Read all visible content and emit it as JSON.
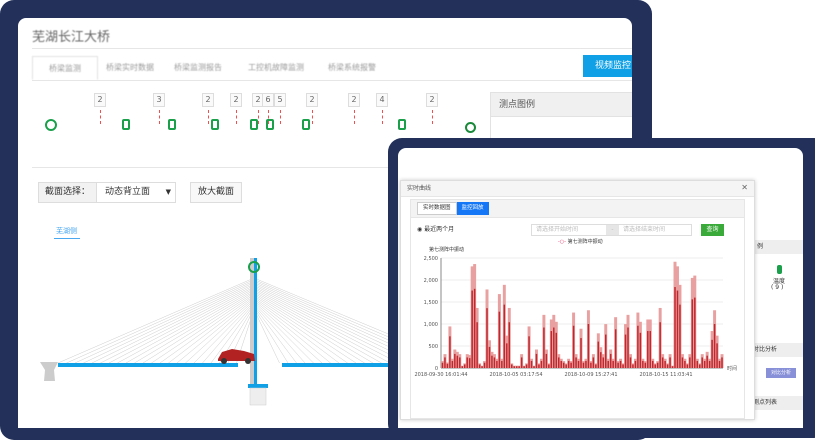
{
  "back_window": {
    "title": "芜湖长江大桥",
    "tabs": [
      "桥梁监测",
      "桥梁实时数据",
      "桥梁监测报告",
      "工控机故障监测",
      "桥梁系统报警"
    ],
    "video_button": "视频监控",
    "sensor_counts": [
      "2",
      "3",
      "2",
      "2",
      "2",
      "6",
      "5",
      "2",
      "2",
      "4",
      "2"
    ],
    "legend_title": "测点图例",
    "section_label": "截面选择：",
    "section_value": "动态背立面",
    "zoom_button": "放大截面",
    "direction_label": "芜湖侧"
  },
  "front_window": {
    "modal_title": "实时曲线",
    "tabs": [
      "实时数据图",
      "监控回放"
    ],
    "radio_label": "最近两个月",
    "start_placeholder": "请选择开始时间",
    "end_placeholder": "请选择结束时间",
    "separator": "-",
    "query_button": "查询",
    "side_legend": "温度",
    "side_count": "( 9 )",
    "compare_title": "对比分析",
    "compare_button": "对比分析",
    "list_title": "测点列表",
    "side_header": "例"
  },
  "colors": {
    "frame": "#22305a",
    "accent": "#0fa0e6",
    "sensor": "#1aa04a",
    "series": "#c0282d",
    "query": "#3aaa3a"
  },
  "chart_data": {
    "type": "bar",
    "legend": "第七测阵中振动",
    "ylabel": "第七测阵中振动",
    "xlabel": "时间",
    "ylim": [
      0,
      2500
    ],
    "yticks": [
      "0",
      "500",
      "1,000",
      "1,500",
      "2,000",
      "2,500"
    ],
    "xticks": [
      "2018-09-30 16:01:44",
      "2018-10-05 03:17:54",
      "2018-10-09 15:27:41",
      "2018-10-15 11:03:41"
    ],
    "values": [
      150,
      300,
      120,
      900,
      200,
      400,
      350,
      300,
      50,
      100,
      300,
      280,
      2200,
      2250,
      1300,
      100,
      50,
      150,
      1700,
      600,
      350,
      300,
      200,
      1600,
      200,
      1800,
      700,
      1300,
      100,
      50,
      50,
      50,
      300,
      50,
      100,
      900,
      200,
      50,
      400,
      100,
      200,
      1150,
      400,
      100,
      1050,
      1150,
      1000,
      300,
      200,
      150,
      100,
      200,
      150,
      1200,
      300,
      200,
      850,
      150,
      200,
      1250,
      150,
      300,
      100,
      750,
      450,
      300,
      950,
      200,
      400,
      200,
      1100,
      150,
      200,
      100,
      950,
      1150,
      300,
      100,
      200,
      1200,
      1000,
      200,
      150,
      1050,
      1050,
      200,
      100,
      150,
      1300,
      300,
      200,
      100,
      300,
      50,
      2300,
      2200,
      1800,
      300,
      200,
      100,
      300,
      1950,
      2000,
      200,
      100,
      300,
      200,
      350,
      200,
      800,
      1250,
      700,
      200,
      300
    ]
  }
}
